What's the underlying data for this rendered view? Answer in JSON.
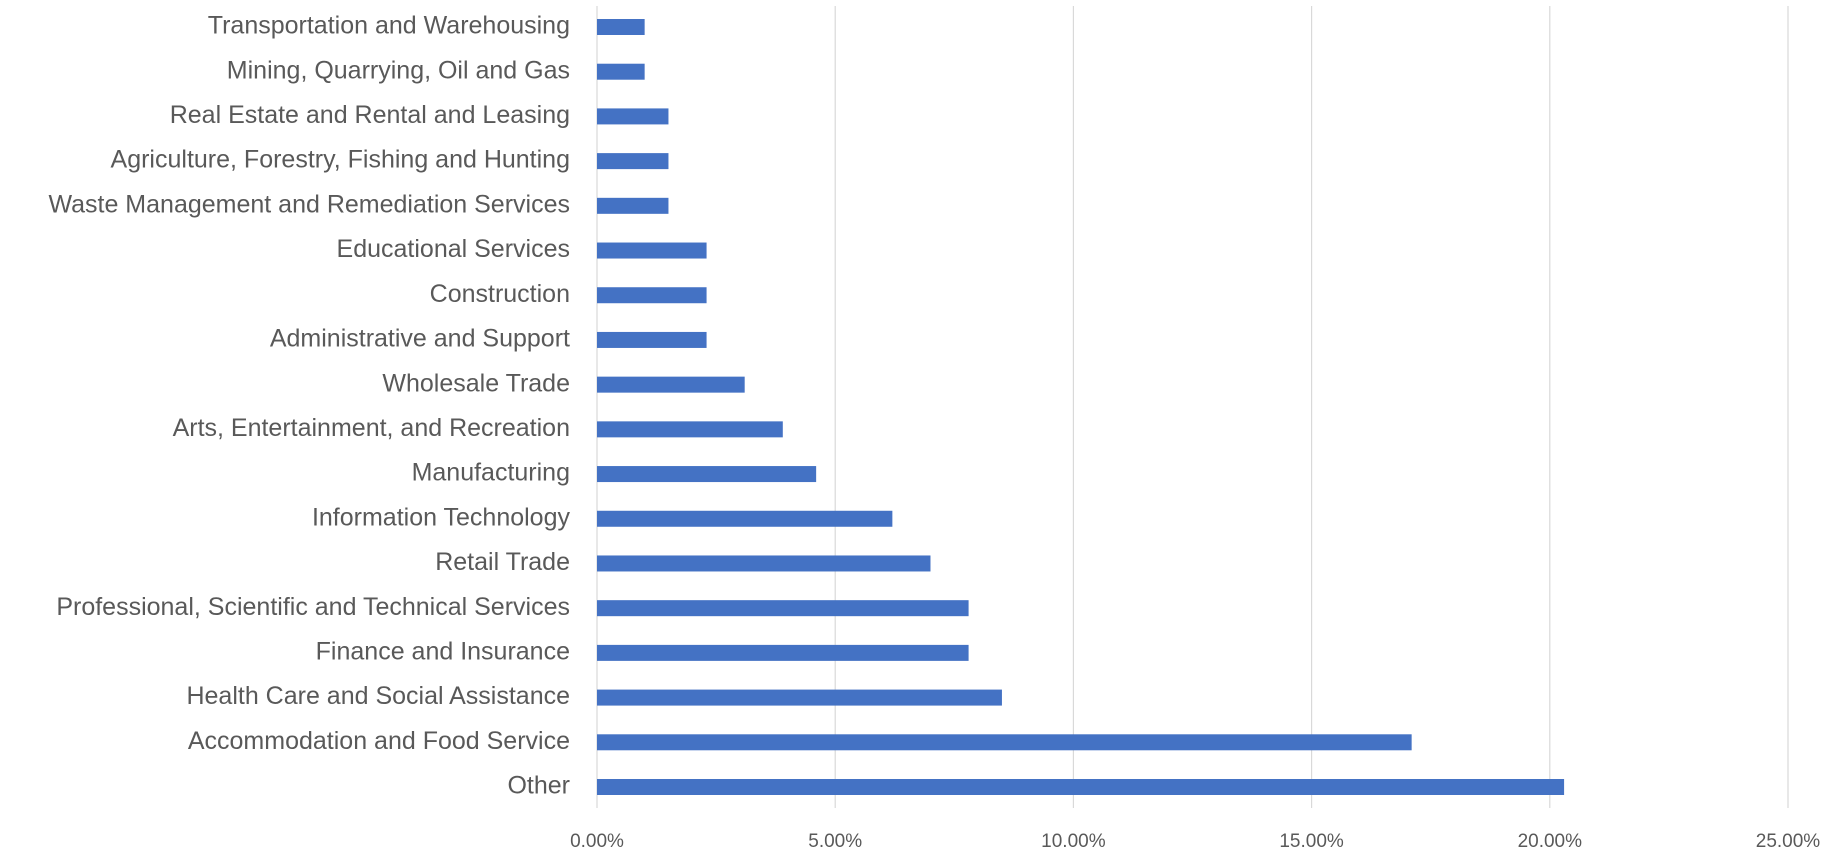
{
  "chart_data": {
    "type": "hbar",
    "categories": [
      "Transportation and Warehousing",
      "Mining, Quarrying, Oil and Gas",
      "Real Estate and Rental and Leasing",
      "Agriculture, Forestry, Fishing and Hunting",
      "Waste Management and Remediation Services",
      "Educational Services",
      "Construction",
      "Administrative and Support",
      "Wholesale Trade",
      "Arts, Entertainment, and Recreation",
      "Manufacturing",
      "Information Technology",
      "Retail Trade",
      "Professional, Scientific and Technical Services",
      "Finance and Insurance",
      "Health Care and Social Assistance",
      "Accommodation and Food Service",
      "Other"
    ],
    "values": [
      1.0,
      1.0,
      1.5,
      1.5,
      1.5,
      2.3,
      2.3,
      2.3,
      3.1,
      3.9,
      4.6,
      6.2,
      7.0,
      7.8,
      7.8,
      8.5,
      17.1,
      20.3
    ],
    "color": "#4472c4",
    "xlim": [
      0,
      25
    ],
    "xticks": [
      {
        "value": 0,
        "label": "0.00%"
      },
      {
        "value": 5,
        "label": "5.00%"
      },
      {
        "value": 10,
        "label": "10.00%"
      },
      {
        "value": 15,
        "label": "15.00%"
      },
      {
        "value": 20,
        "label": "20.00%"
      },
      {
        "value": 25,
        "label": "25.00%"
      }
    ],
    "grid": true
  }
}
